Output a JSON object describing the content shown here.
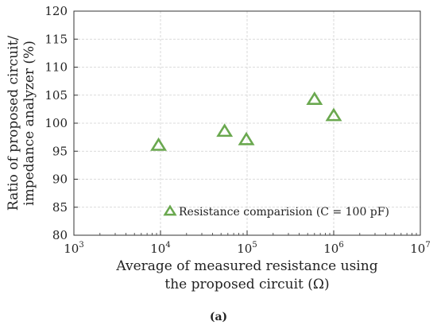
{
  "chart_data": {
    "type": "scatter",
    "x_scale": "log",
    "xlim": [
      1000,
      10000000
    ],
    "ylim": [
      80,
      120
    ],
    "grid": true,
    "x_ticks": [
      {
        "base": "10",
        "exp": "3"
      },
      {
        "base": "10",
        "exp": "4"
      },
      {
        "base": "10",
        "exp": "5"
      },
      {
        "base": "10",
        "exp": "6"
      },
      {
        "base": "10",
        "exp": "7"
      }
    ],
    "y_ticks": [
      "80",
      "85",
      "90",
      "95",
      "100",
      "105",
      "110",
      "115",
      "120"
    ],
    "xlabel_lines": [
      "Average of measured resistance using",
      "the proposed circuit (Ω)"
    ],
    "ylabel_lines": [
      "Ratio of proposed circuit/",
      "impedance analyzer (%)"
    ],
    "series": [
      {
        "name": "Resistance comparision (C = 100 pF)",
        "marker": "triangle-open",
        "color": "#6aa84f",
        "x": [
          9500,
          55000,
          98000,
          600000,
          1000000
        ],
        "y": [
          96.0,
          98.5,
          97.0,
          104.2,
          101.3
        ]
      }
    ],
    "legend_position": "bottom-center",
    "caption": "(a)"
  }
}
